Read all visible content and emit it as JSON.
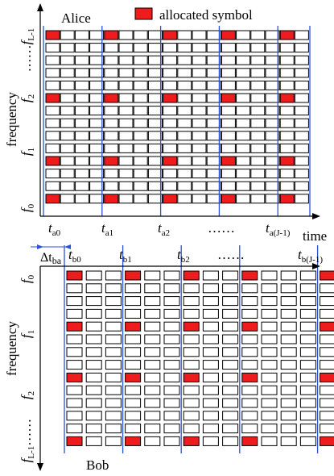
{
  "legend": {
    "label": "allocated symbol",
    "swatch_color": "#ee1c1c"
  },
  "colors": {
    "allocated": "#ee1c1c",
    "empty": "#ffffff",
    "cell_border": "#000000",
    "sync_line": "#2a52d9",
    "axis": "#000000"
  },
  "alice": {
    "name": "Alice",
    "y_axis_label": "frequency",
    "freq_labels": [
      {
        "base": "f",
        "sub": "0"
      },
      {
        "base": "f",
        "sub": "1"
      },
      {
        "base": "f",
        "sub": "2"
      },
      {
        "base": "f",
        "sub": "L-1",
        "prefix": "……"
      }
    ],
    "time_labels": [
      {
        "base": "t",
        "sub": "a0"
      },
      {
        "base": "t",
        "sub": "a1"
      },
      {
        "base": "t",
        "sub": "a2"
      },
      {
        "base": "",
        "sub": "",
        "text": "……"
      },
      {
        "base": "t",
        "sub": "a(J-1)"
      }
    ],
    "x_axis_label": "time",
    "rows": 14,
    "cols": 18,
    "allocated_rows_from_top": [
      0,
      5,
      10,
      13
    ],
    "allocated_cols": [
      0,
      4,
      8,
      12,
      16
    ]
  },
  "offset_label": {
    "prefix": "Δt",
    "sub": "ba"
  },
  "bob": {
    "name": "Bob",
    "y_axis_label": "frequency",
    "freq_labels": [
      {
        "base": "f",
        "sub": "0"
      },
      {
        "base": "f",
        "sub": "1"
      },
      {
        "base": "f",
        "sub": "2"
      },
      {
        "base": "f",
        "sub": "L-1",
        "suffix": "……"
      }
    ],
    "time_labels": [
      {
        "base": "t",
        "sub": "b0"
      },
      {
        "base": "t",
        "sub": "b1"
      },
      {
        "base": "t",
        "sub": "b2"
      },
      {
        "base": "",
        "sub": "",
        "text": "……"
      },
      {
        "base": "t",
        "sub": "b(J-1)"
      }
    ],
    "rows": 14,
    "cols": 14,
    "allocated_rows_from_top": [
      0,
      4,
      8,
      13
    ],
    "allocated_cols": [
      0,
      3,
      6,
      9,
      13
    ]
  }
}
